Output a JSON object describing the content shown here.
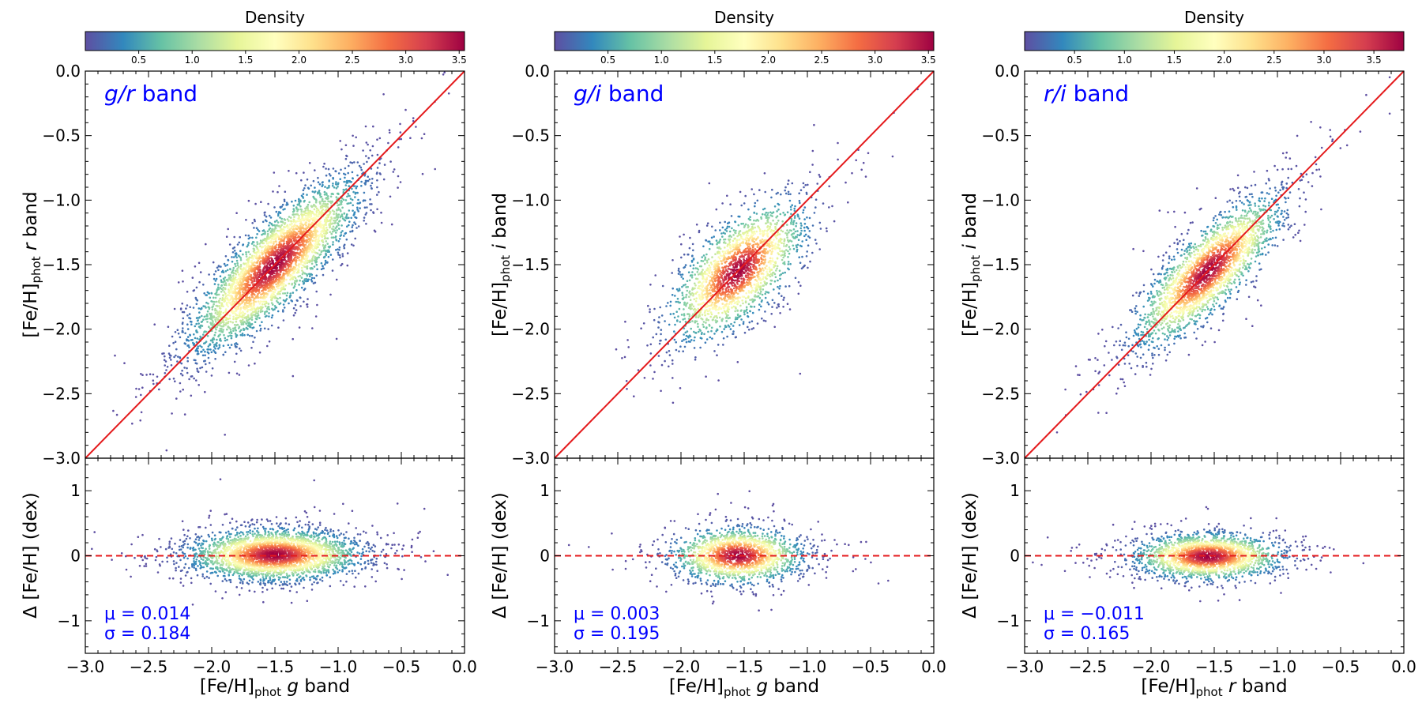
{
  "colors": {
    "fit_line": "#e41a1c",
    "annotation": "#0000ff",
    "colormap": [
      "#5e4fa2",
      "#3288bd",
      "#66c2a5",
      "#abdda4",
      "#e6f598",
      "#ffffbf",
      "#fee08b",
      "#fdae61",
      "#f46d43",
      "#d53e4f",
      "#9e0142"
    ]
  },
  "chart_data": [
    {
      "type": "scatter",
      "panel_label_italic": "g/r",
      "panel_label_suffix": " band",
      "colorbar": {
        "label": "Density",
        "ticks": [
          "0.5",
          "1.0",
          "1.5",
          "2.0",
          "2.5",
          "3.0",
          "3.5"
        ],
        "vmax": 3.55
      },
      "top_plot": {
        "xlim": [
          -3.0,
          0.0
        ],
        "ylim": [
          -3.0,
          0.0
        ],
        "yticks": [
          "0.0",
          "−0.5",
          "−1.0",
          "−1.5",
          "−2.0",
          "−2.5",
          "−3.0"
        ],
        "ylabel_main": "[Fe/H]",
        "ylabel_sub": "phot",
        "ylabel_band": "r",
        "ylabel_suffix": " band",
        "fit_line": {
          "x": [
            -3.0,
            0.0
          ],
          "y": [
            -3.0,
            0.0
          ]
        },
        "cloud": {
          "center": [
            -1.5,
            -1.5
          ],
          "sd_major": 0.42,
          "sd_minor": 0.13,
          "n": 3800,
          "x_range": [
            -2.9,
            0.0
          ]
        }
      },
      "bottom_plot": {
        "ylim": [
          -1.5,
          1.5
        ],
        "yticks": [
          "1",
          "0",
          "−1"
        ],
        "ylabel": "Δ [Fe/H] (dex)",
        "xticks": [
          "−3.0",
          "−2.5",
          "−2.0",
          "−1.5",
          "−1.0",
          "−0.5",
          "0.0"
        ],
        "xlabel_main": "[Fe/H]",
        "xlabel_sub": "phot",
        "xlabel_band": "g",
        "xlabel_suffix": " band",
        "zero_line": 0,
        "mu_label": "μ = 0.014",
        "sigma_label": "σ = 0.184",
        "mu": 0.014,
        "sigma": 0.184
      }
    },
    {
      "type": "scatter",
      "panel_label_italic": "g/i",
      "panel_label_suffix": " band",
      "colorbar": {
        "label": "Density",
        "ticks": [
          "0.5",
          "1.0",
          "1.5",
          "2.0",
          "2.5",
          "3.0",
          "3.5"
        ],
        "vmax": 3.55
      },
      "top_plot": {
        "xlim": [
          -3.0,
          0.0
        ],
        "ylim": [
          -3.0,
          0.0
        ],
        "yticks": [
          "0.0",
          "−0.5",
          "−1.0",
          "−1.5",
          "−2.0",
          "−2.5",
          "−3.0"
        ],
        "ylabel_main": "[Fe/H]",
        "ylabel_sub": "phot",
        "ylabel_band": "i",
        "ylabel_suffix": " band",
        "fit_line": {
          "x": [
            -3.0,
            0.0
          ],
          "y": [
            -3.0,
            0.0
          ]
        },
        "cloud": {
          "center": [
            -1.55,
            -1.55
          ],
          "sd_major": 0.32,
          "sd_minor": 0.15,
          "n": 2200,
          "x_range": [
            -2.6,
            -0.1
          ]
        }
      },
      "bottom_plot": {
        "ylim": [
          -1.5,
          1.5
        ],
        "yticks": [
          "1",
          "0",
          "−1"
        ],
        "ylabel": "Δ [Fe/H] (dex)",
        "xticks": [
          "−3.0",
          "−2.5",
          "−2.0",
          "−1.5",
          "−1.0",
          "−0.5",
          "0.0"
        ],
        "xlabel_main": "[Fe/H]",
        "xlabel_sub": "phot",
        "xlabel_band": "g",
        "xlabel_suffix": " band",
        "zero_line": 0,
        "mu_label": "μ = 0.003",
        "sigma_label": "σ = 0.195",
        "mu": 0.003,
        "sigma": 0.195
      }
    },
    {
      "type": "scatter",
      "panel_label_italic": "r/i",
      "panel_label_suffix": " band",
      "colorbar": {
        "label": "Density",
        "ticks": [
          "0.5",
          "1.0",
          "1.5",
          "2.0",
          "2.5",
          "3.0",
          "3.5"
        ],
        "vmax": 3.8
      },
      "top_plot": {
        "xlim": [
          -3.0,
          0.0
        ],
        "ylim": [
          -3.0,
          0.0
        ],
        "yticks": [
          "0.0",
          "−0.5",
          "−1.0",
          "−1.5",
          "−2.0",
          "−2.5",
          "−3.0"
        ],
        "ylabel_main": "[Fe/H]",
        "ylabel_sub": "phot",
        "ylabel_band": "i",
        "ylabel_suffix": " band",
        "fit_line": {
          "x": [
            -3.0,
            0.0
          ],
          "y": [
            -3.0,
            0.0
          ]
        },
        "cloud": {
          "center": [
            -1.55,
            -1.55
          ],
          "sd_major": 0.36,
          "sd_minor": 0.12,
          "n": 2600,
          "x_range": [
            -2.8,
            -0.05
          ]
        }
      },
      "bottom_plot": {
        "ylim": [
          -1.5,
          1.5
        ],
        "yticks": [
          "1",
          "0",
          "−1"
        ],
        "ylabel": "Δ [Fe/H] (dex)",
        "xticks": [
          "−3.0",
          "−2.5",
          "−2.0",
          "−1.5",
          "−1.0",
          "−0.5",
          "0.0"
        ],
        "xlabel_main": "[Fe/H]",
        "xlabel_sub": "phot",
        "xlabel_band": "r",
        "xlabel_suffix": " band",
        "zero_line": 0,
        "mu_label": "μ = −0.011",
        "sigma_label": "σ = 0.165",
        "mu": -0.011,
        "sigma": 0.165
      }
    }
  ]
}
